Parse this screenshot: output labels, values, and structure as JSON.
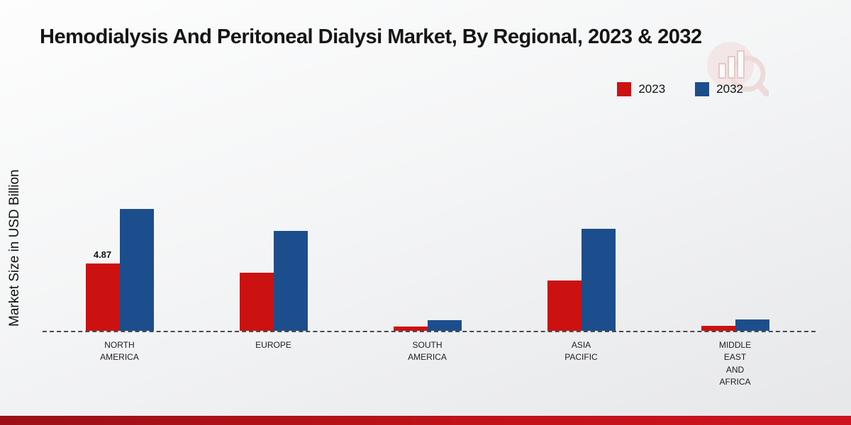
{
  "title": "Hemodialysis And Peritoneal Dialysi Market, By Regional, 2023 & 2032",
  "ylabel": "Market Size in USD Billion",
  "legend": {
    "items": [
      {
        "label": "2023",
        "color": "#cc1111"
      },
      {
        "label": "2032",
        "color": "#1c4e8d"
      }
    ]
  },
  "watermark": "bar-chart-magnifier-logo",
  "footer_accent_color": "#c01219",
  "chart_data": {
    "type": "bar",
    "title": "Hemodialysis And Peritoneal Dialysi Market, By Regional, 2023 & 2032",
    "xlabel": "",
    "ylabel": "Market Size in USD Billion",
    "categories": [
      "NORTH\nAMERICA",
      "EUROPE",
      "SOUTH\nAMERICA",
      "ASIA\nPACIFIC",
      "MIDDLE\nEAST\nAND\nAFRICA"
    ],
    "series": [
      {
        "name": "2023",
        "color": "#cc1111",
        "values": [
          4.87,
          4.2,
          0.32,
          3.6,
          0.35
        ]
      },
      {
        "name": "2032",
        "color": "#1c4e8d",
        "values": [
          8.8,
          7.2,
          0.75,
          7.35,
          0.8
        ]
      }
    ],
    "annotations": [
      {
        "category_index": 0,
        "series_index": 0,
        "text": "4.87"
      }
    ],
    "ylim": [
      0,
      10
    ],
    "grid": false,
    "legend_position": "top-right",
    "baseline_style": "dashed"
  }
}
